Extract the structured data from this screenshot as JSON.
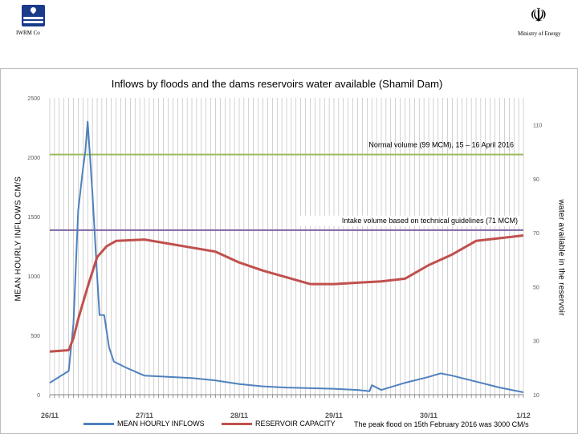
{
  "header": {
    "org_left": "IWRM Co",
    "org_right": "Ministry of Energy",
    "emblem_glyph": "☫"
  },
  "colors": {
    "inflow": "#4f81bd",
    "reservoir": "#c0504d",
    "normal_volume": "#9bbb59",
    "intake_volume": "#8064a2",
    "grid": "#a6a6a6"
  },
  "chart_data": {
    "type": "line",
    "title": "Inflows by floods and the dams reservoirs water available (Shamil Dam)",
    "ylabel_left": "MEAN HOURLY INFLOWS CM/S",
    "ylabel_right": "water available in the reservoir",
    "x": {
      "min": 26,
      "max": 36,
      "ticks": [
        {
          "value": 26,
          "label": "26/11"
        },
        {
          "value": 28,
          "label": "27/11"
        },
        {
          "value": 30,
          "label": "28/11"
        },
        {
          "value": 32,
          "label": "29/11"
        },
        {
          "value": 34,
          "label": "30/11"
        },
        {
          "value": 36,
          "label": "1/12"
        }
      ]
    },
    "y_left": {
      "min": 0,
      "max": 2500,
      "ticks": [
        0,
        500,
        1000,
        1500,
        2000,
        2500
      ]
    },
    "y_right": {
      "min": 10,
      "max": 120,
      "ticks": [
        10,
        30,
        50,
        70,
        90,
        110
      ]
    },
    "reference_lines": [
      {
        "label": "Normal volume (99 MCM), 15 – 16 April 2016",
        "axis": "right",
        "value": 99
      },
      {
        "label": "Intake volume based on technical guidelines (71 MCM)",
        "axis": "right",
        "value": 71
      }
    ],
    "series": [
      {
        "name": "MEAN HOURLY INFLOWS",
        "axis": "left",
        "points": [
          [
            26.0,
            100
          ],
          [
            26.4,
            200
          ],
          [
            26.5,
            600
          ],
          [
            26.6,
            1550
          ],
          [
            26.7,
            1900
          ],
          [
            26.75,
            2050
          ],
          [
            26.8,
            2300
          ],
          [
            26.85,
            2000
          ],
          [
            26.9,
            1700
          ],
          [
            27.0,
            1000
          ],
          [
            27.05,
            670
          ],
          [
            27.15,
            670
          ],
          [
            27.25,
            400
          ],
          [
            27.35,
            280
          ],
          [
            27.6,
            230
          ],
          [
            28.0,
            160
          ],
          [
            28.5,
            150
          ],
          [
            29.0,
            140
          ],
          [
            29.5,
            120
          ],
          [
            30.0,
            90
          ],
          [
            30.5,
            70
          ],
          [
            31.0,
            60
          ],
          [
            31.5,
            55
          ],
          [
            32.0,
            50
          ],
          [
            32.5,
            40
          ],
          [
            32.75,
            30
          ],
          [
            32.8,
            80
          ],
          [
            33.0,
            40
          ],
          [
            33.5,
            100
          ],
          [
            34.0,
            150
          ],
          [
            34.25,
            180
          ],
          [
            34.5,
            160
          ],
          [
            35.0,
            110
          ],
          [
            35.5,
            60
          ],
          [
            36.0,
            20
          ]
        ]
      },
      {
        "name": "RESERVOIR CAPACITY",
        "axis": "right",
        "points": [
          [
            26.0,
            26
          ],
          [
            26.4,
            26.5
          ],
          [
            26.5,
            31
          ],
          [
            26.6,
            38
          ],
          [
            26.8,
            50
          ],
          [
            27.0,
            61
          ],
          [
            27.2,
            65
          ],
          [
            27.4,
            67
          ],
          [
            28.0,
            67.5
          ],
          [
            28.5,
            66
          ],
          [
            29.0,
            64.5
          ],
          [
            29.5,
            63
          ],
          [
            30.0,
            59
          ],
          [
            30.5,
            56
          ],
          [
            31.0,
            53.5
          ],
          [
            31.5,
            51
          ],
          [
            32.0,
            51
          ],
          [
            32.5,
            51.5
          ],
          [
            33.0,
            52
          ],
          [
            33.5,
            53
          ],
          [
            34.0,
            58
          ],
          [
            34.5,
            62
          ],
          [
            35.0,
            67
          ],
          [
            35.5,
            68
          ],
          [
            36.0,
            69
          ]
        ]
      }
    ],
    "legend": [
      "MEAN HOURLY INFLOWS",
      "RESERVOIR CAPACITY"
    ],
    "legend_placement": "bottom",
    "grid": "vertical"
  },
  "footnote": "The peak flood on 15th February 2016 was 3000 CM/s"
}
